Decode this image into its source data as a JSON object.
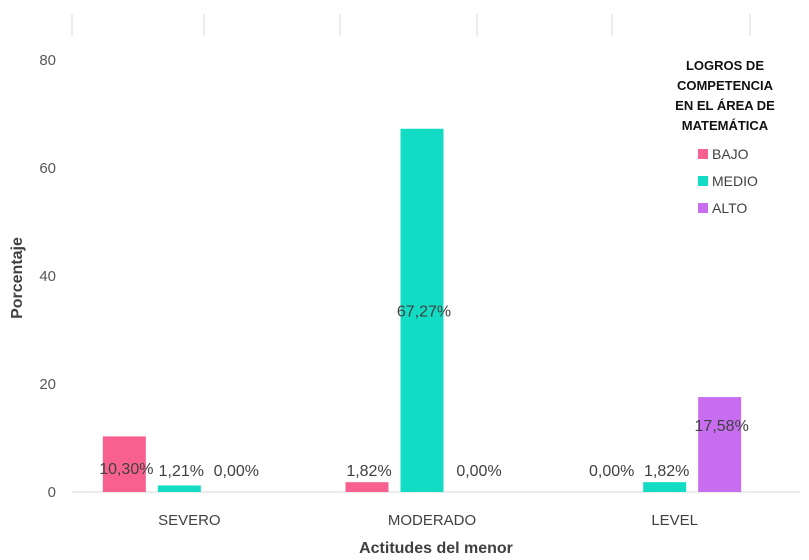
{
  "chart_data": {
    "type": "bar",
    "title": "",
    "xlabel": "Actitudes del menor",
    "ylabel": "Porcentaje",
    "ylim": [
      0,
      85
    ],
    "yticks": [
      0,
      20,
      40,
      60,
      80
    ],
    "categories": [
      "SEVERO",
      "MODERADO",
      "LEVEL"
    ],
    "legend_title_lines": [
      "LOGROS DE",
      "COMPETENCIA",
      "EN EL ÁREA DE",
      "MATEMÁTICA"
    ],
    "legend_position": "right",
    "grid": false,
    "series": [
      {
        "name": "BAJO",
        "color": "#f7608f",
        "values": [
          10.3,
          1.82,
          0.0
        ],
        "labels": [
          "10,30%",
          "1,82%",
          "0,00%"
        ]
      },
      {
        "name": "MEDIO",
        "color": "#12dcc3",
        "values": [
          1.21,
          67.27,
          1.82
        ],
        "labels": [
          "1,21%",
          "67,27%",
          "1,82%"
        ]
      },
      {
        "name": "ALTO",
        "color": "#c86cf0",
        "values": [
          0.0,
          0.0,
          17.58
        ],
        "labels": [
          "0,00%",
          "0,00%",
          "17,58%"
        ]
      }
    ]
  }
}
